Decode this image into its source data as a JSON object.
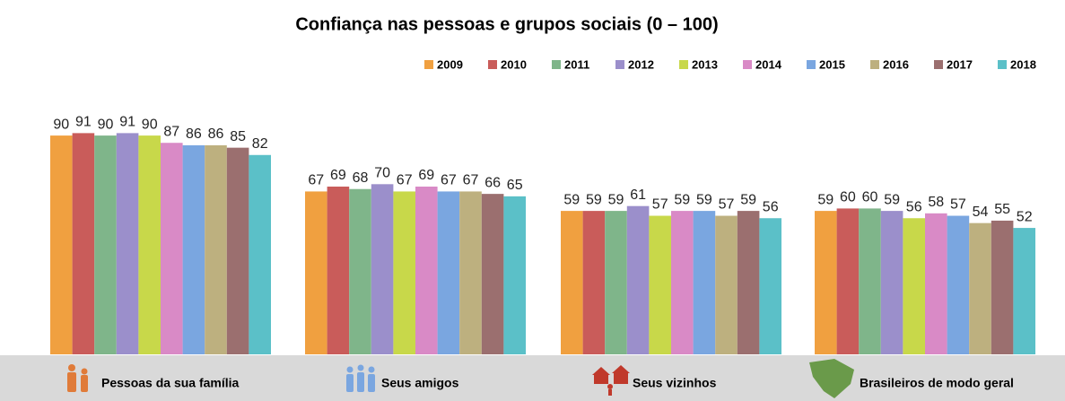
{
  "chart_data": {
    "type": "bar",
    "title": "Confiança nas pessoas  e grupos sociais (0 – 100)",
    "categories": [
      "Pessoas da sua família",
      "Seus amigos",
      "Seus vizinhos",
      "Brasileiros de modo geral"
    ],
    "series": [
      {
        "name": "2009",
        "color": "#f0a040",
        "values": [
          90,
          67,
          59,
          59
        ]
      },
      {
        "name": "2010",
        "color": "#c95c5a",
        "values": [
          91,
          69,
          59,
          60
        ]
      },
      {
        "name": "2011",
        "color": "#7fb58a",
        "values": [
          90,
          68,
          59,
          60
        ]
      },
      {
        "name": "2012",
        "color": "#9b8fcb",
        "values": [
          91,
          70,
          61,
          59
        ]
      },
      {
        "name": "2013",
        "color": "#c8d84a",
        "values": [
          90,
          67,
          57,
          56
        ]
      },
      {
        "name": "2014",
        "color": "#d98ac6",
        "values": [
          87,
          69,
          59,
          58
        ]
      },
      {
        "name": "2015",
        "color": "#7aa6e0",
        "values": [
          86,
          67,
          59,
          57
        ]
      },
      {
        "name": "2016",
        "color": "#bdb07f",
        "values": [
          86,
          67,
          57,
          54
        ]
      },
      {
        "name": "2017",
        "color": "#9b6f6f",
        "values": [
          85,
          66,
          59,
          55
        ]
      },
      {
        "name": "2018",
        "color": "#5bc0c8",
        "values": [
          82,
          65,
          56,
          52
        ]
      }
    ],
    "legend": "top-right"
  }
}
